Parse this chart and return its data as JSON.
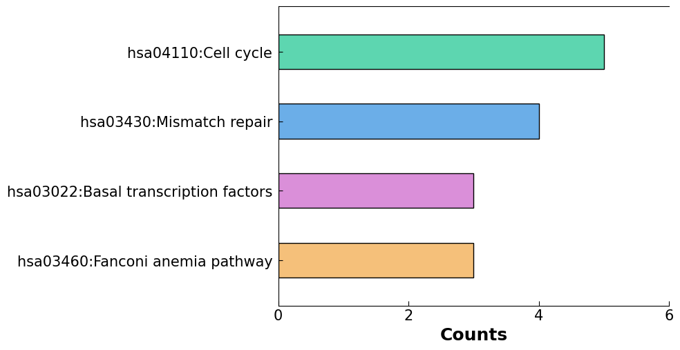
{
  "categories": [
    "hsa03460:Fanconi anemia pathway",
    "hsa03022:Basal transcription factors",
    "hsa03430:Mismatch repair",
    "hsa04110:Cell cycle"
  ],
  "values": [
    3,
    3,
    4,
    5
  ],
  "bar_colors": [
    "#F5C07A",
    "#DA8FD9",
    "#6BAEE8",
    "#5DD6B0"
  ],
  "xlabel": "Counts",
  "xlim": [
    0,
    6
  ],
  "xticks": [
    0,
    2,
    4,
    6
  ],
  "background_color": "#ffffff",
  "bar_height": 0.5,
  "label_fontsize": 15,
  "tick_fontsize": 15,
  "xlabel_fontsize": 18
}
